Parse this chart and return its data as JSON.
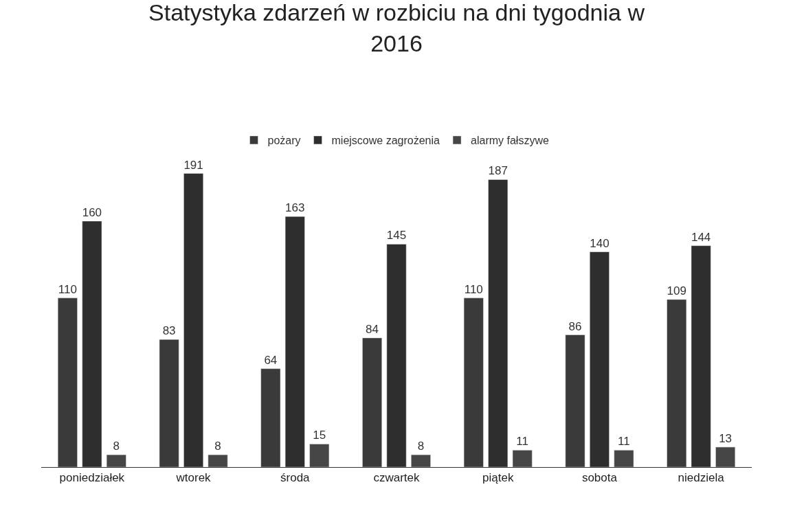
{
  "chart_data": {
    "type": "bar",
    "title": "Statystyka zdarzeń w rozbiciu na dni tygodnia w 2016",
    "categories": [
      "poniedziałek",
      "wtorek",
      "środa",
      "czwartek",
      "piątek",
      "sobota",
      "niedziela"
    ],
    "series": [
      {
        "name": "pożary",
        "color": "#3a3a3a",
        "values": [
          110,
          83,
          64,
          84,
          110,
          86,
          109
        ]
      },
      {
        "name": "miejscowe zagrożenia",
        "color": "#2e2e2e",
        "values": [
          160,
          191,
          163,
          145,
          187,
          140,
          144
        ]
      },
      {
        "name": "alarmy fałszywe",
        "color": "#464646",
        "values": [
          8,
          8,
          15,
          8,
          11,
          11,
          13
        ]
      }
    ],
    "data_labels": true,
    "legend": "top",
    "tick_labels": "x"
  }
}
